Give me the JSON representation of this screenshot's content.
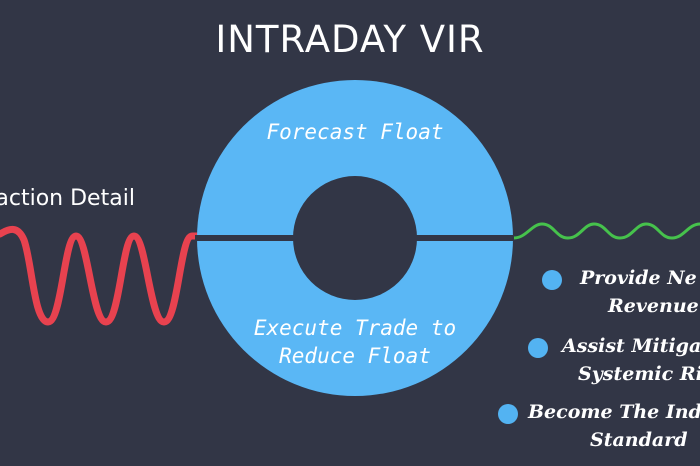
{
  "title": "INTRADAY VIR",
  "input_label": "nsaction Detail",
  "ring": {
    "top_label": "Forecast Float",
    "bottom_line1": "Execute Trade to",
    "bottom_line2": "Reduce Float"
  },
  "benefits": [
    {
      "line1": "Provide Ne",
      "line2": "Revenue"
    },
    {
      "line1": "Assist Mitiga",
      "line2": "Systemic Ri"
    },
    {
      "line1": "Become The Ind",
      "line2": "Standard"
    }
  ],
  "colors": {
    "background": "#323646",
    "ring": "#5ab7f5",
    "input_wave": "#e8424f",
    "output_wave": "#46c24c",
    "bullet": "#53b3f2"
  }
}
